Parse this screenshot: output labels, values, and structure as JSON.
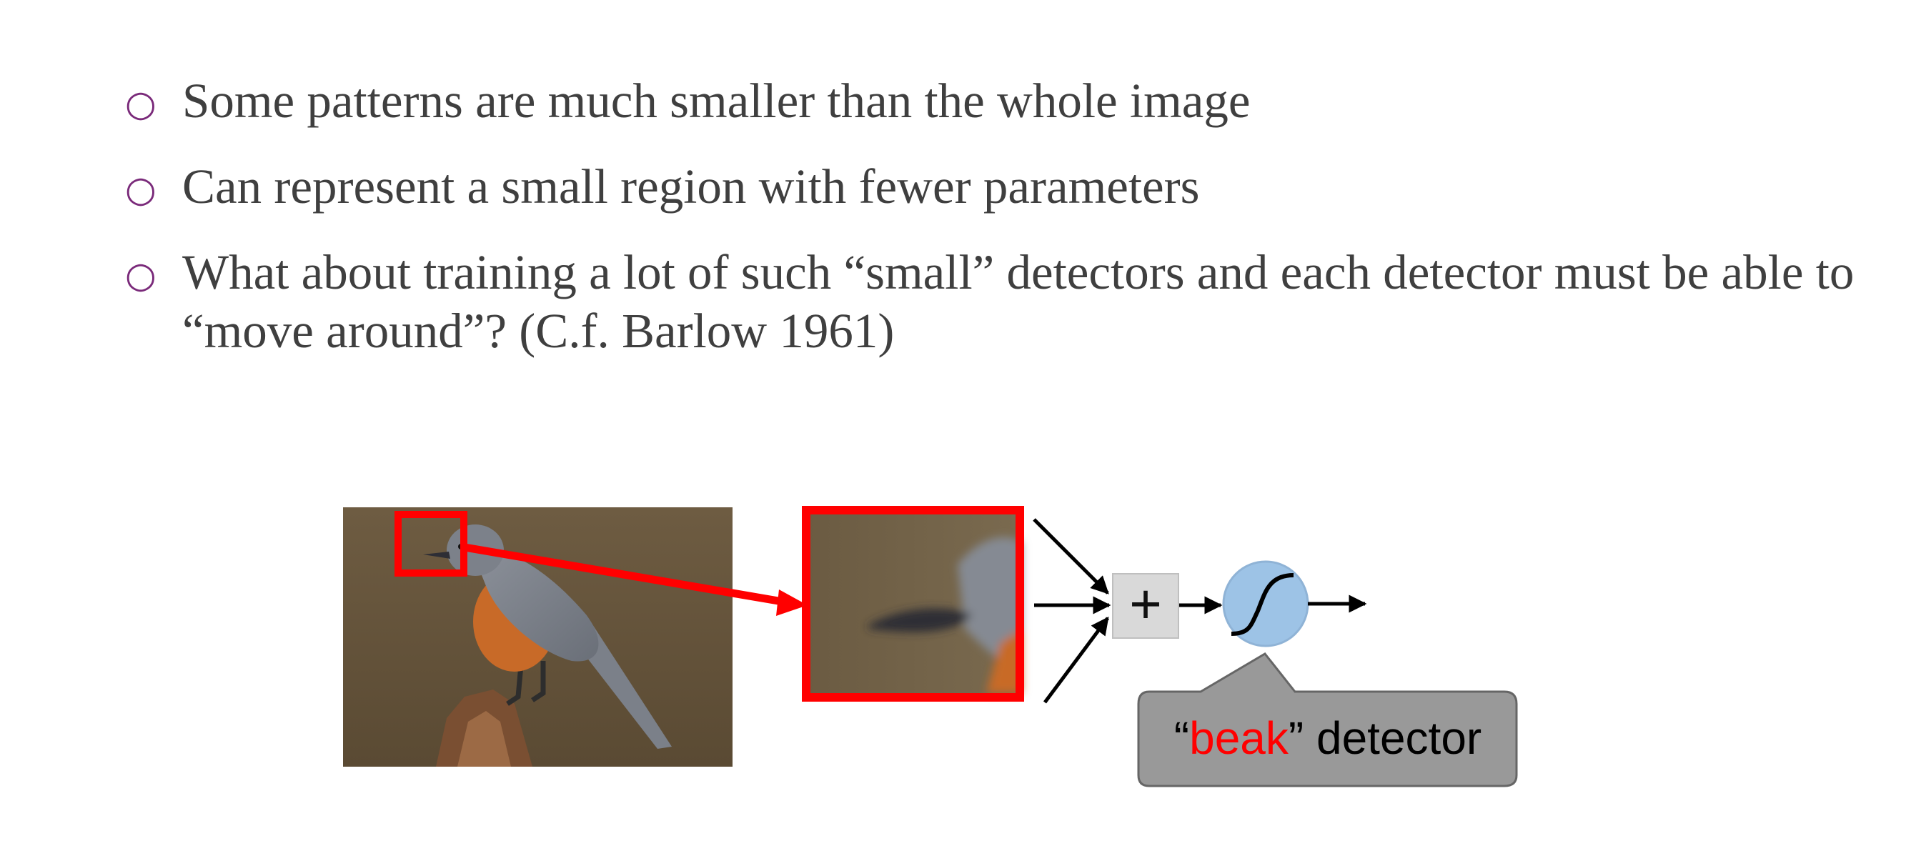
{
  "bullets": [
    {
      "text": "Some patterns are much smaller than the whole image"
    },
    {
      "text": "Can represent a small region with fewer parameters"
    },
    {
      "text": "What about training a lot of such “small” detectors and each detector must be able to “move around”? (C.f. Barlow  1961)"
    }
  ],
  "diagram": {
    "plus_symbol": "+",
    "callout": {
      "open_quote": "“",
      "keyword": "beak",
      "close_quote": "”",
      "suffix": " detector"
    },
    "colors": {
      "highlight": "#ff0000",
      "neuron": "#9dc3e6",
      "adder": "#d9d9d9",
      "callout_bg": "#999999",
      "bullet_marker": "#7a2a7a"
    }
  }
}
